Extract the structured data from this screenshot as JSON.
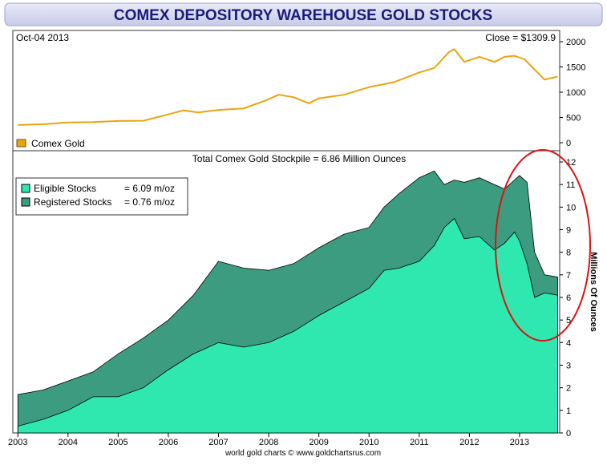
{
  "title": "COMEX DEPOSITORY WAREHOUSE GOLD STOCKS",
  "top_panel": {
    "date_label": "Oct-04  2013",
    "close_label": "Close = $1309.9",
    "legend_label": "Comex Gold"
  },
  "bottom_panel": {
    "headline": "Total Comex Gold Stockpile = 6.86 Million Ounces",
    "legend": [
      {
        "label": "Eligible Stocks",
        "value": "= 6.09 m/oz"
      },
      {
        "label": "Registered Stocks",
        "value": "= 0.76 m/oz"
      }
    ],
    "ylabel": "Millions Of Ounces"
  },
  "footer": "world gold charts © www.goldchartsrus.com",
  "colors": {
    "gold_line": "#eaa40e",
    "eligible": "#2ee8b0",
    "registered": "#3c9c80",
    "highlight_ellipse": "#dd1111",
    "title_text": "#1a1a7a"
  },
  "chart_data": [
    {
      "type": "line",
      "name": "top",
      "series": [
        {
          "name": "Comex Gold",
          "x": [
            2003.0,
            2003.5,
            2004.0,
            2004.5,
            2005.0,
            2005.5,
            2006.0,
            2006.3,
            2006.6,
            2007.0,
            2007.5,
            2007.9,
            2008.2,
            2008.5,
            2008.8,
            2009.0,
            2009.5,
            2010.0,
            2010.5,
            2011.0,
            2011.3,
            2011.6,
            2011.7,
            2011.9,
            2012.2,
            2012.5,
            2012.7,
            2012.9,
            2013.1,
            2013.3,
            2013.5,
            2013.76
          ],
          "values": [
            350,
            365,
            400,
            410,
            430,
            435,
            560,
            640,
            600,
            650,
            680,
            820,
            950,
            900,
            780,
            880,
            950,
            1100,
            1200,
            1390,
            1480,
            1800,
            1850,
            1600,
            1700,
            1600,
            1700,
            1720,
            1650,
            1450,
            1250,
            1310
          ]
        }
      ],
      "xlim": [
        2002.9,
        2013.8
      ],
      "ylim": [
        0,
        2000
      ],
      "yticks": [
        0,
        500,
        1000,
        1500,
        2000
      ]
    },
    {
      "type": "area",
      "name": "bottom",
      "x": [
        2003.0,
        2003.5,
        2004.0,
        2004.5,
        2005.0,
        2005.5,
        2006.0,
        2006.5,
        2007.0,
        2007.5,
        2008.0,
        2008.5,
        2009.0,
        2009.5,
        2010.0,
        2010.3,
        2010.6,
        2011.0,
        2011.3,
        2011.5,
        2011.7,
        2011.9,
        2012.2,
        2012.5,
        2012.7,
        2012.9,
        2013.0,
        2013.15,
        2013.3,
        2013.5,
        2013.76
      ],
      "series": [
        {
          "name": "Eligible Stocks",
          "values": [
            0.3,
            0.6,
            1.0,
            1.6,
            1.6,
            2.0,
            2.8,
            3.5,
            4.0,
            3.8,
            4.0,
            4.5,
            5.2,
            5.8,
            6.4,
            7.2,
            7.3,
            7.6,
            8.3,
            9.1,
            9.5,
            8.6,
            8.7,
            8.1,
            8.4,
            8.9,
            8.5,
            7.5,
            6.0,
            6.2,
            6.1
          ]
        },
        {
          "name": "Registered Stocks",
          "values": [
            1.7,
            1.9,
            2.3,
            2.7,
            3.5,
            4.2,
            5.0,
            6.1,
            7.6,
            7.3,
            7.2,
            7.5,
            8.2,
            8.8,
            9.1,
            10.0,
            10.6,
            11.3,
            11.6,
            11.0,
            11.2,
            11.1,
            11.3,
            11.0,
            10.8,
            11.2,
            11.4,
            11.1,
            8.0,
            7.0,
            6.9
          ]
        }
      ],
      "xlim": [
        2002.9,
        2013.8
      ],
      "ylim": [
        0,
        12
      ],
      "yticks": [
        0,
        1,
        2,
        3,
        4,
        5,
        6,
        7,
        8,
        9,
        10,
        11,
        12
      ],
      "xtick_labels": [
        "2003",
        "2004",
        "2005",
        "2006",
        "2007",
        "2008",
        "2009",
        "2010",
        "2011",
        "2012",
        "2013"
      ],
      "grid": false
    }
  ]
}
